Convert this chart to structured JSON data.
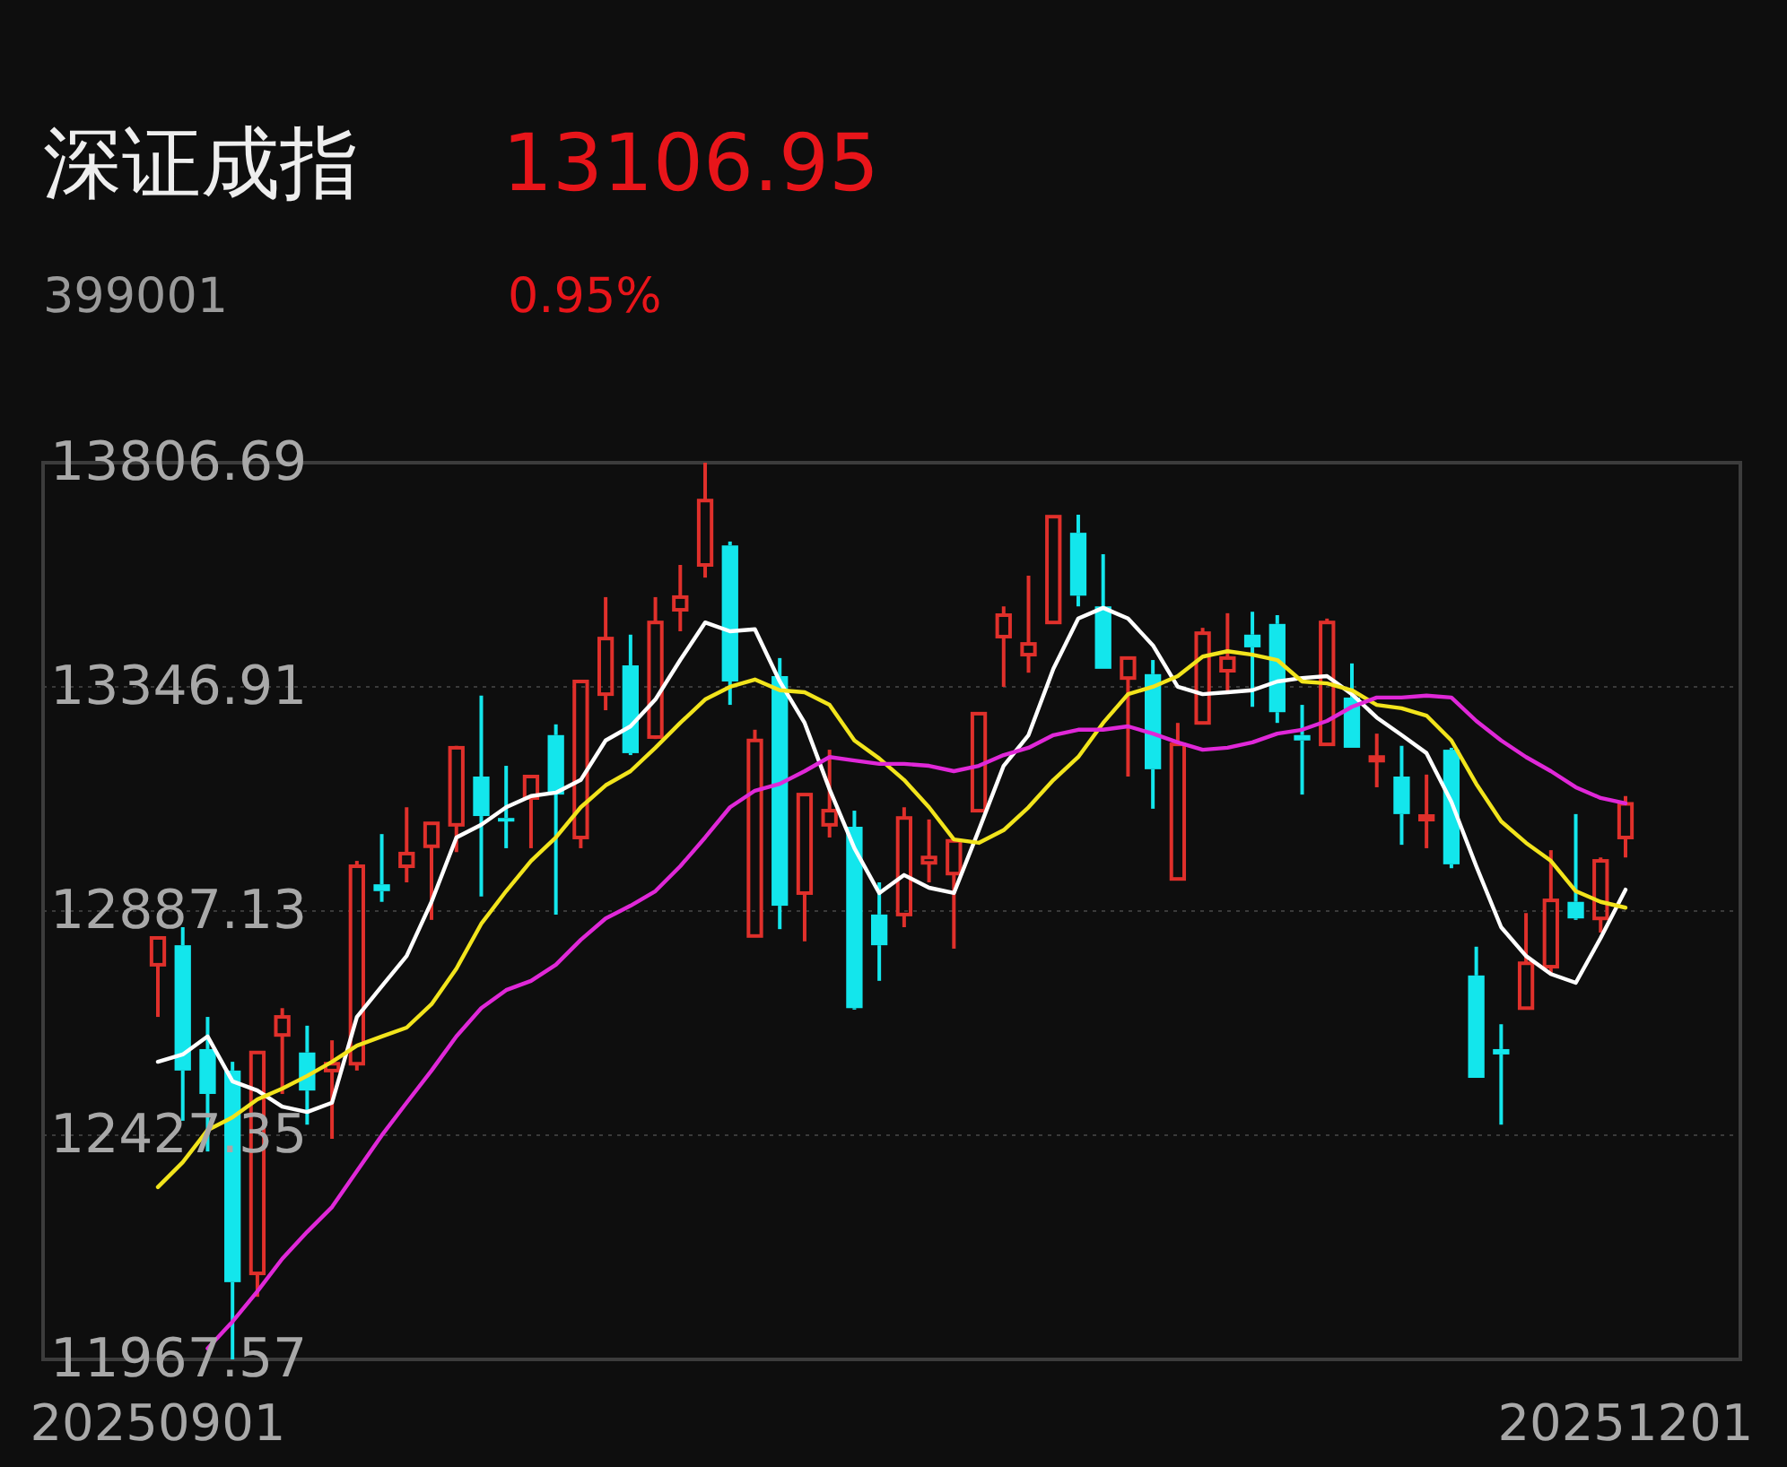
{
  "chart_data": {
    "type": "candlestick",
    "title": "深证成指",
    "subtitle": "399001",
    "annotations": [
      "13106.95",
      "0.95%"
    ],
    "categories": [
      "20250901",
      null,
      null,
      null,
      null,
      null,
      null,
      null,
      null,
      null,
      null,
      null,
      null,
      null,
      null,
      null,
      null,
      null,
      null,
      null,
      null,
      null,
      null,
      null,
      null,
      null,
      null,
      null,
      null,
      null,
      null,
      null,
      null,
      null,
      null,
      null,
      null,
      null,
      null,
      null,
      null,
      null,
      null,
      null,
      null,
      null,
      null,
      null,
      null,
      null,
      null,
      null,
      null,
      null,
      null,
      null,
      null,
      null,
      null,
      "20251201"
    ],
    "ohlc": [
      [
        12777,
        12832,
        12670,
        12832
      ],
      [
        12817,
        12854,
        12457,
        12560
      ],
      [
        12604,
        12670,
        12394,
        12512
      ],
      [
        12560,
        12578,
        11967.57,
        12126
      ],
      [
        12144,
        12597,
        12096,
        12597
      ],
      [
        12633,
        12688,
        12512,
        12670
      ],
      [
        12597,
        12652,
        12449,
        12519
      ],
      [
        12560,
        12622,
        12420,
        12574
      ],
      [
        12574,
        12990,
        12560,
        12979
      ],
      [
        12942,
        13045,
        12906,
        12928
      ],
      [
        12979,
        13100,
        12946,
        13005
      ],
      [
        13020,
        13067,
        12869,
        13067
      ],
      [
        13064,
        13226,
        13008,
        13222
      ],
      [
        13163,
        13329,
        12917,
        13082
      ],
      [
        13078,
        13185,
        13016,
        13071
      ],
      [
        13119,
        13163,
        13016,
        13163
      ],
      [
        13248,
        13270,
        12880,
        13126
      ],
      [
        13038,
        13358,
        13016,
        13358
      ],
      [
        13332,
        13531,
        13299,
        13446
      ],
      [
        13391,
        13454,
        13207,
        13211
      ],
      [
        13244,
        13531,
        13240,
        13479
      ],
      [
        13505,
        13597,
        13461,
        13531
      ],
      [
        13597,
        13806.69,
        13571,
        13729
      ],
      [
        13637,
        13645,
        13310,
        13358
      ],
      [
        12836,
        13259,
        12836,
        13237
      ],
      [
        13369,
        13406,
        12850,
        12898
      ],
      [
        12924,
        13126,
        12825,
        13126
      ],
      [
        13064,
        13218,
        13038,
        13093
      ],
      [
        13060,
        13093,
        12685,
        12688
      ],
      [
        12880,
        12946,
        12744,
        12817
      ],
      [
        12880,
        13100,
        12854,
        13078
      ],
      [
        12986,
        13075,
        12946,
        12997
      ],
      [
        12964,
        13031,
        12810,
        13031
      ],
      [
        13093,
        13292,
        13093,
        13292
      ],
      [
        13450,
        13512,
        13347,
        13494
      ],
      [
        13413,
        13575,
        13376,
        13435
      ],
      [
        13479,
        13696,
        13479,
        13696
      ],
      [
        13663,
        13700,
        13512,
        13534
      ],
      [
        13512,
        13619,
        13384,
        13384
      ],
      [
        13365,
        13406,
        13163,
        13406
      ],
      [
        13373,
        13402,
        13097,
        13178
      ],
      [
        12953,
        13273,
        12953,
        13229
      ],
      [
        13273,
        13468,
        13273,
        13457
      ],
      [
        13380,
        13498,
        13332,
        13406
      ],
      [
        13454,
        13501,
        13306,
        13428
      ],
      [
        13476,
        13494,
        13273,
        13295
      ],
      [
        13248,
        13310,
        13126,
        13237
      ],
      [
        13229,
        13487,
        13229,
        13479
      ],
      [
        13325,
        13395,
        13222,
        13222
      ],
      [
        13200,
        13251,
        13141,
        13203
      ],
      [
        13163,
        13226,
        13023,
        13086
      ],
      [
        13075,
        13167,
        13016,
        13082
      ],
      [
        13218,
        13222,
        12975,
        12983
      ],
      [
        12755,
        12814,
        12545,
        12545
      ],
      [
        12604,
        12655,
        12449,
        12593
      ],
      [
        12688,
        12883,
        12688,
        12780
      ],
      [
        12773,
        13012,
        12758,
        12909
      ],
      [
        12906,
        13086,
        12869,
        12872
      ],
      [
        12872,
        12997,
        12843,
        12990
      ],
      [
        13038,
        13123,
        12997,
        13106.95
      ]
    ],
    "series": [
      {
        "type": "line",
        "color": "#ffffff",
        "values": [
          12578,
          12593,
          12630,
          12538,
          12519,
          12486,
          12475,
          12494,
          12670,
          12733,
          12795,
          12906,
          13038,
          13064,
          13100,
          13123,
          13130,
          13156,
          13237,
          13266,
          13321,
          13402,
          13479,
          13461,
          13465,
          13358,
          13273,
          13137,
          13016,
          12924,
          12961,
          12935,
          12924,
          13053,
          13185,
          13248,
          13384,
          13487,
          13509,
          13487,
          13432,
          13347,
          13332,
          13336,
          13340,
          13358,
          13365,
          13369,
          13332,
          13284,
          13248,
          13211,
          13111,
          12979,
          12854,
          12795,
          12758,
          12740,
          12832,
          12931
        ]
      },
      {
        "type": "line",
        "color": "#f2e41c",
        "values": [
          12321,
          12372,
          12438,
          12464,
          12501,
          12523,
          12549,
          12578,
          12611,
          12630,
          12648,
          12696,
          12769,
          12861,
          12928,
          12990,
          13038,
          13100,
          13145,
          13174,
          13222,
          13273,
          13321,
          13347,
          13362,
          13340,
          13336,
          13310,
          13237,
          13200,
          13156,
          13100,
          13034,
          13027,
          13053,
          13100,
          13156,
          13203,
          13273,
          13332,
          13347,
          13369,
          13409,
          13420,
          13413,
          13402,
          13358,
          13354,
          13340,
          13310,
          13303,
          13288,
          13237,
          13148,
          13071,
          13027,
          12990,
          12928,
          12906,
          12894
        ]
      },
      {
        "type": "line",
        "color": "#e028d8",
        "values": [
          null,
          null,
          11990,
          12045,
          12107,
          12174,
          12229,
          12280,
          12354,
          12427,
          12494,
          12560,
          12630,
          12688,
          12725,
          12744,
          12777,
          12828,
          12872,
          12898,
          12928,
          12979,
          13038,
          13100,
          13134,
          13148,
          13174,
          13203,
          13196,
          13189,
          13189,
          13185,
          13174,
          13185,
          13207,
          13222,
          13248,
          13259,
          13259,
          13266,
          13251,
          13233,
          13218,
          13222,
          13233,
          13251,
          13259,
          13277,
          13306,
          13325,
          13325,
          13329,
          13325,
          13277,
          13237,
          13203,
          13174,
          13141,
          13119,
          13108
        ]
      }
    ],
    "ylim": [
      11967.57,
      13806.69
    ],
    "yticks": [
      11967.57,
      12427.35,
      12887.13,
      13346.91,
      13806.69
    ],
    "grid": "y",
    "legend": false
  }
}
